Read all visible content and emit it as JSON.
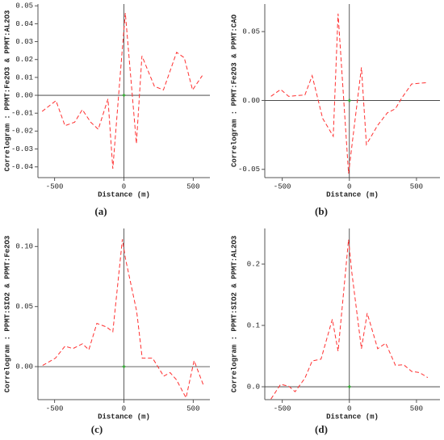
{
  "chart_data": [
    {
      "type": "line",
      "caption": "(a)",
      "xlabel": "Distance (m)",
      "ylabel": "Correlogram : PPMT:Fe2O3 & PPMT:AL2O3",
      "x": [
        -590,
        -490,
        -425,
        -355,
        -300,
        -240,
        -185,
        -115,
        -80,
        -25,
        10,
        90,
        130,
        220,
        285,
        380,
        435,
        495,
        565
      ],
      "values": [
        -0.009,
        -0.003,
        -0.017,
        -0.015,
        -0.008,
        -0.015,
        -0.019,
        -0.002,
        -0.041,
        0.013,
        0.046,
        -0.027,
        0.022,
        0.005,
        0.003,
        0.024,
        0.021,
        0.003,
        0.011
      ],
      "color": "#ff3030",
      "xlim": [
        -620,
        620
      ],
      "xticks": [
        -500,
        0,
        500
      ],
      "ylim": [
        -0.046,
        0.051
      ],
      "yticks": [
        0.05,
        0.04,
        0.03,
        0.02,
        0.01,
        {
          "value": 0,
          "label": "0.00"
        },
        -0.01,
        -0.02,
        -0.03,
        -0.04
      ]
    },
    {
      "type": "line",
      "caption": "(b)",
      "xlabel": "Distance (m)",
      "ylabel": "Correlogram : PPMT:Fe2O3 & PPMT:CAO",
      "x": [
        -584,
        -512,
        -452,
        -331,
        -277,
        -199,
        -120,
        -84,
        -6,
        90,
        127,
        211,
        283,
        343,
        392,
        464,
        584
      ],
      "values": [
        0.003,
        0.008,
        0.003,
        0.004,
        0.018,
        -0.013,
        -0.026,
        0.063,
        -0.053,
        0.024,
        -0.032,
        -0.018,
        -0.009,
        -0.006,
        0.002,
        0.012,
        0.013
      ],
      "color": "#ff3030",
      "xlim": [
        -630,
        675
      ],
      "xticks": [
        -500,
        0,
        500
      ],
      "ylim": [
        -0.056,
        0.07
      ],
      "yticks": [
        0.05,
        {
          "value": 0,
          "label": "0.00"
        },
        -0.05
      ]
    },
    {
      "type": "line",
      "caption": "(c)",
      "xlabel": "Distance (m)",
      "ylabel": "Correlogram : PPMT:SIO2 & PPMT:Fe2O3",
      "x": [
        -586,
        -494,
        -425,
        -368,
        -299,
        -253,
        -195,
        -126,
        -80,
        -11,
        11,
        92,
        132,
        207,
        287,
        333,
        379,
        448,
        506,
        575
      ],
      "values": [
        0.001,
        0.007,
        0.017,
        0.015,
        0.019,
        0.014,
        0.036,
        0.033,
        0.029,
        0.106,
        0.09,
        0.046,
        0.007,
        0.007,
        -0.008,
        -0.005,
        -0.011,
        -0.026,
        0.005,
        -0.016
      ],
      "color": "#ff3030",
      "xlim": [
        -620,
        620
      ],
      "xticks": [
        -500,
        0,
        500
      ],
      "ylim": [
        -0.0275,
        0.115
      ],
      "yticks": [
        {
          "value": 0.1,
          "label": "0.10"
        },
        0.05,
        {
          "value": 0,
          "label": "0.00"
        }
      ]
    },
    {
      "type": "line",
      "caption": "(d)",
      "xlabel": "Distance (m)",
      "ylabel": "Correlogram : PPMT:SIO2 & PPMT:AL2O3",
      "x": [
        -584,
        -512,
        -452,
        -404,
        -331,
        -277,
        -211,
        -127,
        -84,
        -6,
        18,
        90,
        133,
        211,
        271,
        343,
        404,
        464,
        524,
        584
      ],
      "values": [
        -0.02,
        0.004,
        0.001,
        -0.008,
        0.014,
        0.042,
        0.045,
        0.11,
        0.058,
        0.24,
        0.187,
        0.062,
        0.12,
        0.062,
        0.071,
        0.035,
        0.036,
        0.025,
        0.023,
        0.015
      ],
      "color": "#ff3030",
      "xlim": [
        -630,
        675
      ],
      "xticks": [
        -500,
        0,
        500
      ],
      "ylim": [
        -0.021,
        0.258
      ],
      "yticks": [
        0.2,
        0.1,
        {
          "value": 0,
          "label": "0.0"
        }
      ]
    }
  ]
}
